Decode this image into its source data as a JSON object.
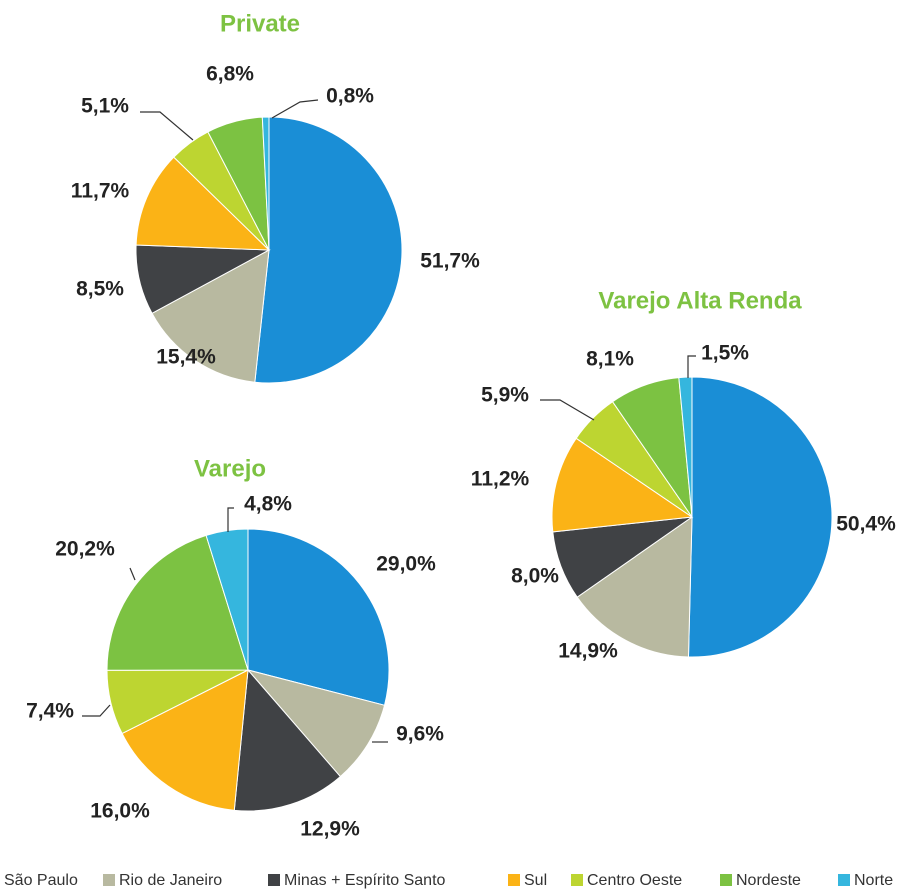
{
  "legend": {
    "categories": [
      "São Paulo",
      "Rio de Janeiro",
      "Minas + Espírito Santo",
      "Sul",
      "Centro Oeste",
      "Nordeste",
      "Norte"
    ],
    "colors": [
      "#1a8ed6",
      "#b8b9a0",
      "#404245",
      "#fbb316",
      "#bdd531",
      "#7cc242",
      "#35b6de"
    ]
  },
  "chart_data": [
    {
      "type": "pie",
      "title": "Private",
      "values": [
        51.7,
        15.4,
        8.5,
        11.7,
        5.1,
        6.8,
        0.8
      ],
      "value_labels": [
        "51,7%",
        "15,4%",
        "8,5%",
        "11,7%",
        "5,1%",
        "6,8%",
        "0,8%"
      ]
    },
    {
      "type": "pie",
      "title": "Varejo",
      "values": [
        29.0,
        9.6,
        12.9,
        16.0,
        7.4,
        20.2,
        4.8
      ],
      "value_labels": [
        "29,0%",
        "9,6%",
        "12,9%",
        "16,0%",
        "7,4%",
        "20,2%",
        "4,8%"
      ]
    },
    {
      "type": "pie",
      "title": "Varejo Alta Renda",
      "values": [
        50.4,
        14.9,
        8.0,
        11.2,
        5.9,
        8.1,
        1.5
      ],
      "value_labels": [
        "50,4%",
        "14,9%",
        "8,0%",
        "11,2%",
        "5,9%",
        "8,1%",
        "1,5%"
      ]
    }
  ]
}
